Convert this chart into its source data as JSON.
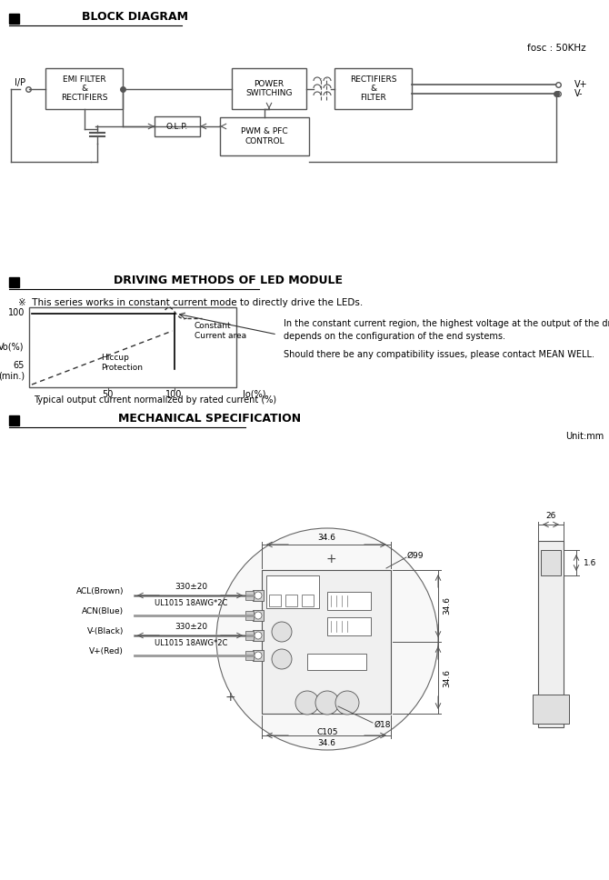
{
  "bg_color": "#ffffff",
  "text_color": "#000000",
  "line_color": "#555555",
  "section1_title": "BLOCK DIAGRAM",
  "fosc_label": "fosc : 50KHz",
  "block_labels": {
    "emi": "EMI FILTER\n&\nRECTIFIERS",
    "power": "POWER\nSWITCHING",
    "rect": "RECTIFIERS\n&\nFILTER",
    "olp": "O.L.P.",
    "pwm": "PWM & PFC\nCONTROL"
  },
  "ip_label": "I/P",
  "vplus_label": "V+",
  "vminus_label": "V-",
  "section2_title": "DRIVING METHODS OF LED MODULE",
  "note_text": "※  This series works in constant current mode to directly drive the LEDs.",
  "constant_current_label": "Constant\nCurrent area",
  "hiccup_label": "Hiccup\nProtection",
  "vo_100": "100",
  "vo_65": "65\n(min.)",
  "vo_label": "Vo(%)",
  "io_50": "50",
  "io_100": "100",
  "io_label": "Io(%)",
  "caption": "Typical output current normalized by rated current (%)",
  "right_text_line1": "In the constant current region, the highest voltage at the output of the driver",
  "right_text_line2": "depends on the configuration of the end systems.",
  "right_text_line3": "Should there be any compatibility issues, please contact MEAN WELL.",
  "section3_title": "MECHANICAL SPECIFICATION",
  "unit_label": "Unit:mm",
  "dim_346_top": "34.6",
  "dim_346_right1": "34.6",
  "dim_346_right2": "34.6",
  "dim_346_bottom": "34.6",
  "dim_330": "330±20",
  "dim_26": "26",
  "dim_16": "1.6",
  "dim_99": "Ø99",
  "dim_18": "Ø18",
  "dim_c105": "C105",
  "ul_label1": "UL1015 18AWG*2C",
  "ul_label2": "UL1015 18AWG*2C",
  "acl_label": "ACL(Brown)",
  "acn_label": "ACN(Blue)",
  "vminus_wire": "V-(Black)",
  "vplus_wire": "V+(Red)"
}
